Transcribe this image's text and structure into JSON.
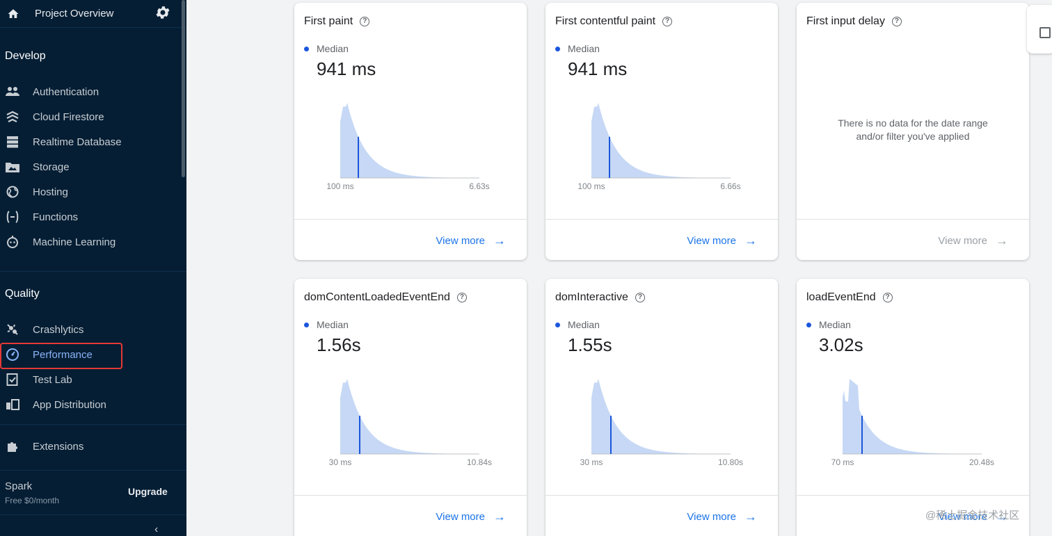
{
  "sidebar": {
    "project_overview": "Project Overview",
    "develop_section": "Develop",
    "develop_items": [
      {
        "label": "Authentication",
        "icon": "users-icon"
      },
      {
        "label": "Cloud Firestore",
        "icon": "firestore-icon"
      },
      {
        "label": "Realtime Database",
        "icon": "database-icon"
      },
      {
        "label": "Storage",
        "icon": "storage-icon"
      },
      {
        "label": "Hosting",
        "icon": "hosting-icon"
      },
      {
        "label": "Functions",
        "icon": "functions-icon"
      },
      {
        "label": "Machine Learning",
        "icon": "robot-icon"
      }
    ],
    "quality_section": "Quality",
    "quality_items": [
      {
        "label": "Crashlytics",
        "icon": "crashlytics-icon"
      },
      {
        "label": "Performance",
        "icon": "performance-icon",
        "active": true
      },
      {
        "label": "Test Lab",
        "icon": "test-lab-icon"
      },
      {
        "label": "App Distribution",
        "icon": "app-distribution-icon"
      }
    ],
    "extensions": "Extensions",
    "plan_name": "Spark",
    "plan_sub": "Free $0/month",
    "upgrade": "Upgrade",
    "accent": "#8ab4f8",
    "highlight_color": "#e53935"
  },
  "cards": [
    {
      "title": "First paint",
      "legend": "Median",
      "value": "941 ms",
      "xmin": "100 ms",
      "xmax": "6.63s",
      "median_fraction": 0.13,
      "view_more": "View more"
    },
    {
      "title": "First contentful paint",
      "legend": "Median",
      "value": "941 ms",
      "xmin": "100 ms",
      "xmax": "6.66s",
      "median_fraction": 0.13,
      "view_more": "View more"
    },
    {
      "title": "First input delay",
      "empty_line1": "There is no data for the date range",
      "empty_line2": "and/or filter you've applied",
      "view_more": "View more",
      "disabled": true
    },
    {
      "title": "domContentLoadedEventEnd",
      "legend": "Median",
      "value": "1.56s",
      "xmin": "30 ms",
      "xmax": "10.84s",
      "median_fraction": 0.14,
      "view_more": "View more"
    },
    {
      "title": "domInteractive",
      "legend": "Median",
      "value": "1.55s",
      "xmin": "30 ms",
      "xmax": "10.80s",
      "median_fraction": 0.14,
      "view_more": "View more"
    },
    {
      "title": "loadEventEnd",
      "legend": "Median",
      "value": "3.02s",
      "xmin": "70 ms",
      "xmax": "20.48s",
      "median_fraction": 0.14,
      "view_more": "View more"
    }
  ],
  "watermark": "@稀土掘金技术社区",
  "colors": {
    "chart_fill": "#c6d8f5",
    "median_line": "#1a56db",
    "link": "#1a73e8"
  }
}
